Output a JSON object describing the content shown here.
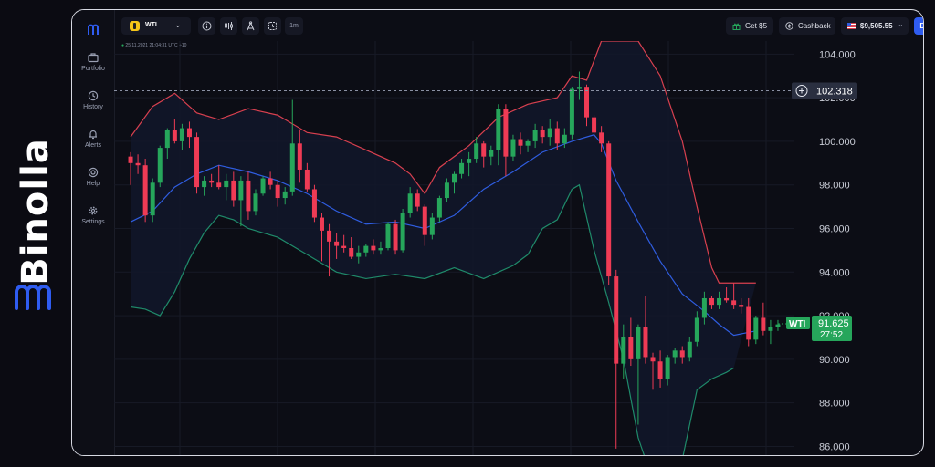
{
  "brand": {
    "name": "Binolla"
  },
  "sidebar": {
    "items": [
      {
        "label": "Portfolio",
        "icon": "briefcase-icon"
      },
      {
        "label": "History",
        "icon": "history-icon"
      },
      {
        "label": "Alerts",
        "icon": "bell-icon"
      },
      {
        "label": "Help",
        "icon": "help-icon"
      },
      {
        "label": "Settings",
        "icon": "gear-icon"
      }
    ]
  },
  "topbar": {
    "asset": {
      "label": "WTI",
      "icon": "oil-icon"
    },
    "tools": [
      "info-icon",
      "indicators-icon",
      "drawing-icon",
      "timer-icon"
    ],
    "timeframe": "1m",
    "bonus": "Get $5",
    "cashback": "Cashback",
    "balance": "$9,505.55",
    "deposit": "Deposit"
  },
  "chart_meta": {
    "timestamp": "25.11.2021 21:04:31 UTC +10",
    "crosshair_price": "102.318",
    "current_asset": "WTI",
    "current_price": "91.625",
    "countdown": "27:52"
  },
  "colors": {
    "up": "#26a65b",
    "down": "#ef3b55",
    "upper_band": "#d8404f",
    "middle_band": "#2f5de0",
    "lower_band": "#1f8a6a",
    "accent": "#2f5cf0"
  },
  "chart_data": {
    "type": "candlestick",
    "y_ticks": [
      "104.000",
      "102.000",
      "100.000",
      "98.000",
      "96.000",
      "94.000",
      "92.000",
      "90.000",
      "88.000",
      "86.000"
    ],
    "ylim": [
      85.6,
      104.6
    ],
    "candles": [
      [
        99.3,
        99.5,
        98.0,
        99.0
      ],
      [
        99.0,
        99.4,
        98.5,
        98.9
      ],
      [
        98.9,
        99.2,
        96.3,
        96.6
      ],
      [
        96.6,
        98.3,
        96.3,
        98.1
      ],
      [
        98.1,
        99.8,
        97.9,
        99.7
      ],
      [
        99.7,
        100.6,
        99.2,
        100.5
      ],
      [
        100.5,
        101.0,
        99.9,
        100.0
      ],
      [
        100.0,
        100.8,
        99.6,
        100.6
      ],
      [
        100.6,
        100.9,
        99.7,
        100.2
      ],
      [
        100.2,
        100.4,
        97.6,
        97.9
      ],
      [
        97.9,
        98.4,
        97.5,
        98.2
      ],
      [
        98.2,
        98.5,
        97.9,
        98.1
      ],
      [
        98.1,
        98.9,
        97.8,
        97.9
      ],
      [
        97.9,
        98.5,
        97.3,
        98.2
      ],
      [
        98.2,
        98.6,
        97.0,
        97.3
      ],
      [
        97.3,
        98.4,
        96.1,
        98.2
      ],
      [
        98.2,
        98.6,
        96.4,
        96.8
      ],
      [
        96.8,
        97.8,
        96.6,
        97.6
      ],
      [
        97.6,
        98.4,
        97.5,
        98.3
      ],
      [
        98.3,
        98.6,
        97.8,
        98.0
      ],
      [
        98.0,
        98.2,
        97.0,
        97.4
      ],
      [
        97.4,
        97.9,
        97.1,
        97.7
      ],
      [
        97.7,
        101.9,
        97.5,
        99.9
      ],
      [
        99.9,
        100.5,
        98.1,
        98.7
      ],
      [
        98.7,
        99.0,
        97.7,
        97.8
      ],
      [
        97.8,
        98.0,
        96.3,
        96.5
      ],
      [
        96.5,
        96.7,
        94.5,
        95.9
      ],
      [
        95.9,
        96.2,
        93.8,
        95.4
      ],
      [
        95.4,
        95.8,
        94.6,
        95.2
      ],
      [
        95.2,
        95.7,
        94.9,
        95.1
      ],
      [
        95.1,
        95.6,
        94.6,
        94.7
      ],
      [
        94.7,
        95.2,
        94.4,
        94.9
      ],
      [
        94.9,
        95.3,
        94.7,
        95.2
      ],
      [
        95.2,
        95.5,
        94.8,
        95.0
      ],
      [
        95.0,
        95.4,
        94.8,
        95.1
      ],
      [
        95.1,
        96.3,
        95.0,
        96.2
      ],
      [
        96.2,
        96.4,
        94.8,
        95.0
      ],
      [
        95.0,
        96.9,
        94.9,
        96.7
      ],
      [
        96.7,
        97.9,
        96.5,
        97.6
      ],
      [
        97.6,
        97.8,
        96.8,
        97.0
      ],
      [
        97.0,
        97.1,
        95.2,
        95.7
      ],
      [
        95.7,
        96.7,
        95.5,
        96.5
      ],
      [
        96.5,
        97.5,
        96.3,
        97.4
      ],
      [
        97.4,
        98.3,
        97.2,
        98.1
      ],
      [
        98.1,
        98.6,
        97.6,
        98.5
      ],
      [
        98.5,
        99.2,
        98.3,
        99.0
      ],
      [
        99.0,
        99.5,
        98.4,
        99.2
      ],
      [
        99.2,
        100.2,
        99.0,
        99.9
      ],
      [
        99.9,
        100.0,
        98.8,
        99.3
      ],
      [
        99.3,
        99.8,
        98.9,
        99.6
      ],
      [
        99.6,
        101.7,
        98.9,
        101.5
      ],
      [
        101.5,
        101.7,
        98.4,
        99.3
      ],
      [
        99.3,
        100.3,
        99.1,
        100.1
      ],
      [
        100.1,
        100.4,
        99.4,
        99.8
      ],
      [
        99.8,
        100.1,
        99.5,
        100.0
      ],
      [
        100.0,
        100.8,
        99.7,
        100.5
      ],
      [
        100.5,
        100.7,
        99.9,
        100.2
      ],
      [
        100.2,
        101.0,
        99.8,
        100.6
      ],
      [
        100.6,
        100.9,
        99.6,
        99.9
      ],
      [
        99.9,
        100.6,
        99.7,
        100.3
      ],
      [
        100.3,
        102.5,
        100.1,
        102.4
      ],
      [
        102.4,
        103.2,
        101.9,
        102.5
      ],
      [
        102.5,
        102.6,
        100.7,
        101.1
      ],
      [
        101.1,
        101.2,
        100.1,
        100.4
      ],
      [
        100.4,
        100.7,
        99.5,
        99.9
      ],
      [
        99.9,
        100.0,
        93.4,
        93.8
      ],
      [
        93.8,
        94.1,
        85.9,
        89.8
      ],
      [
        89.8,
        91.6,
        89.1,
        91.0
      ],
      [
        91.0,
        91.9,
        89.7,
        90.0
      ],
      [
        90.0,
        91.6,
        87.0,
        91.5
      ],
      [
        91.5,
        92.9,
        89.8,
        90.1
      ],
      [
        90.1,
        90.3,
        88.6,
        89.9
      ],
      [
        89.9,
        90.4,
        88.7,
        89.1
      ],
      [
        89.1,
        90.2,
        88.8,
        90.1
      ],
      [
        90.1,
        90.5,
        89.8,
        90.4
      ],
      [
        90.4,
        90.6,
        89.8,
        90.1
      ],
      [
        90.1,
        91.0,
        89.9,
        90.8
      ],
      [
        90.8,
        92.2,
        90.6,
        91.9
      ],
      [
        91.9,
        93.1,
        91.6,
        92.8
      ],
      [
        92.8,
        92.9,
        92.3,
        92.5
      ],
      [
        92.5,
        93.1,
        92.3,
        92.8
      ],
      [
        92.8,
        93.3,
        92.6,
        92.7
      ],
      [
        92.7,
        93.5,
        92.3,
        92.5
      ],
      [
        92.5,
        92.8,
        92.1,
        92.4
      ],
      [
        92.4,
        92.8,
        90.6,
        90.9
      ],
      [
        90.9,
        92.0,
        90.7,
        91.9
      ],
      [
        91.9,
        92.6,
        91.1,
        91.3
      ],
      [
        91.3,
        91.8,
        90.7,
        91.5
      ],
      [
        91.5,
        91.8,
        91.3,
        91.6
      ]
    ],
    "upper_band": [
      [
        0,
        100.2
      ],
      [
        3,
        101.6
      ],
      [
        6,
        102.2
      ],
      [
        9,
        101.3
      ],
      [
        12,
        101.0
      ],
      [
        16,
        101.5
      ],
      [
        20,
        101.2
      ],
      [
        24,
        100.4
      ],
      [
        28,
        100.2
      ],
      [
        32,
        99.6
      ],
      [
        36,
        99.0
      ],
      [
        38,
        98.5
      ],
      [
        40,
        97.6
      ],
      [
        42,
        98.8
      ],
      [
        46,
        99.8
      ],
      [
        50,
        101.1
      ],
      [
        54,
        101.7
      ],
      [
        58,
        102.0
      ],
      [
        60,
        103.0
      ],
      [
        62,
        102.8
      ],
      [
        64,
        104.6
      ],
      [
        66,
        104.6
      ],
      [
        69,
        104.6
      ],
      [
        72,
        103.0
      ],
      [
        75,
        100.0
      ],
      [
        77,
        97.0
      ],
      [
        79,
        94.2
      ],
      [
        80,
        93.5
      ],
      [
        81,
        93.5
      ],
      [
        85,
        93.5
      ]
    ],
    "middle_band": [
      [
        0,
        96.3
      ],
      [
        3,
        96.8
      ],
      [
        6,
        97.9
      ],
      [
        9,
        98.5
      ],
      [
        12,
        98.9
      ],
      [
        16,
        98.6
      ],
      [
        20,
        98.2
      ],
      [
        24,
        97.6
      ],
      [
        28,
        96.8
      ],
      [
        32,
        96.2
      ],
      [
        36,
        96.3
      ],
      [
        40,
        96.0
      ],
      [
        44,
        96.6
      ],
      [
        48,
        97.8
      ],
      [
        52,
        98.6
      ],
      [
        56,
        99.5
      ],
      [
        60,
        100.0
      ],
      [
        63,
        100.3
      ],
      [
        64,
        99.9
      ],
      [
        66,
        98.2
      ],
      [
        69,
        96.3
      ],
      [
        72,
        94.5
      ],
      [
        75,
        93.0
      ],
      [
        78,
        92.2
      ],
      [
        80,
        91.6
      ],
      [
        82,
        91.1
      ],
      [
        85,
        91.3
      ]
    ],
    "lower_band": [
      [
        0,
        92.4
      ],
      [
        2,
        92.3
      ],
      [
        4,
        92.0
      ],
      [
        6,
        93.1
      ],
      [
        8,
        94.6
      ],
      [
        10,
        95.8
      ],
      [
        12,
        96.6
      ],
      [
        14,
        96.4
      ],
      [
        16,
        96.0
      ],
      [
        20,
        95.6
      ],
      [
        24,
        94.8
      ],
      [
        28,
        94.0
      ],
      [
        32,
        93.7
      ],
      [
        36,
        93.9
      ],
      [
        40,
        93.7
      ],
      [
        44,
        94.2
      ],
      [
        48,
        93.7
      ],
      [
        50,
        94.0
      ],
      [
        52,
        94.3
      ],
      [
        54,
        94.8
      ],
      [
        56,
        96.0
      ],
      [
        58,
        96.4
      ],
      [
        60,
        97.8
      ],
      [
        61,
        98.0
      ],
      [
        63,
        95.0
      ],
      [
        65,
        92.6
      ],
      [
        67,
        90.0
      ],
      [
        69,
        86.4
      ],
      [
        71,
        84.4
      ],
      [
        73,
        84.3
      ],
      [
        75,
        85.4
      ],
      [
        77,
        88.6
      ],
      [
        79,
        89.1
      ],
      [
        81,
        89.4
      ],
      [
        82,
        89.6
      ]
    ]
  }
}
